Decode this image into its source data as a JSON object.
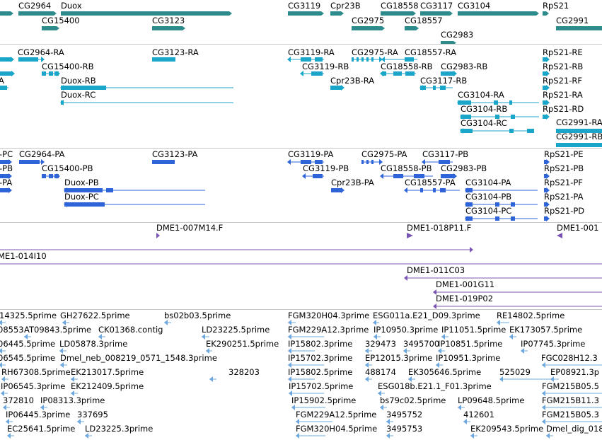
{
  "colors": {
    "gene": "#2e8b8b",
    "transcript": "#1aa6c8",
    "protein": "#2f63d8",
    "clone": "#7b55b3",
    "est": "#6fa8dc",
    "line": "#3a7bd5"
  },
  "tracks": {
    "genes": {
      "labels": [
        "CG2964",
        "Duox",
        "CG15400",
        "CG3123",
        "CG3119",
        "Cpr23B",
        "CG18558",
        "CG3117",
        "CG3104",
        "RpS21",
        "CG2975",
        "CG18557",
        "CG2991",
        "CG2983"
      ]
    },
    "transcripts": {
      "labels": [
        "CG2964-RA",
        "CG3123-RA",
        "CG3119-RA",
        "CG2975-RA",
        "CG18557-RA",
        "RpS21-RE",
        "CG15400-RB",
        "CG3119-RB",
        "CG18558-RB",
        "CG2983-RB",
        "RpS21-RB",
        "Duox-RB",
        "Cpr23B-RA",
        "CG3117-RB",
        "RpS21-RF",
        "Duox-RC",
        "CG3104-RA",
        "RpS21-RA",
        "CG3104-RB",
        "RpS21-RD",
        "CG2991-RA",
        "CG3104-RC",
        "CG2991-RB",
        "A"
      ]
    },
    "proteins": {
      "labels": [
        "-PC",
        "CG2964-PA",
        "CG3123-PA",
        "CG3119-PA",
        "CG2975-PA",
        "CG3117-PB",
        "RpS21-PE",
        "-PB",
        "CG15400-PB",
        "CG3119-PB",
        "CG18558-PB",
        "CG2983-PB",
        "RpS21-PB",
        "-PA",
        "Duox-PB",
        "Cpr23B-PA",
        "CG18557-PA",
        "CG3104-PA",
        "RpS21-PF",
        "CG3104-PB",
        "RpS21-PA",
        "Duox-PC",
        "CG3104-PC",
        "RpS21-PD"
      ]
    },
    "clones": {
      "labels": [
        "DME1-007M14.F",
        "DME1-018P11.F",
        "DME1-001",
        "ME1-014I10",
        "DME1-011C03",
        "DME1-001G11",
        "DME1-019P02"
      ]
    },
    "ests": {
      "labels": [
        "14325.5prime",
        "GH27622.5prime",
        "bs02b03.5prime",
        "FGM320H04.3prime",
        "ESG011a.E21_D09.3prime",
        "RE14802.5prime",
        "08553",
        "AT09843.5prime",
        "CK01368.contig",
        "LD23225.5prime",
        "FGM229A12.3prime",
        "IP10950.3prime",
        "IP11051.5prime",
        "EK173057.5prime",
        "06445.5prime",
        "LD05878.3prime",
        "EK290251.5prime",
        "IP15802.3prime",
        "329473",
        "3495700",
        "IP10851.5prime",
        "IP07745.3prime",
        "06545.5prime",
        "Dmel_neb_008219_0571_1548.3prime",
        "IP15702.3prime",
        "EP12015.3prime",
        "IP10951.3prime",
        "FGC028H12.3",
        "RH67308.5prime",
        "EK213017.5prime",
        "328203",
        "IP15802.5prime",
        "488174",
        "EK305646.5prime",
        "525029",
        "EP08921.3p",
        "IP06545.3prime",
        "EK212409.5prime",
        "IP15702.5prime",
        "ESG018b.E21.1_F01.3prime",
        "FGM215B05.5",
        "372810",
        "IP08313.3prime",
        "IP15902.5prime",
        "bs79c02.5prime",
        "LP09648.5prime",
        "FGM215B11.3",
        "IP06445.3prime",
        "337695",
        "FGM229A12.5prime",
        "3495752",
        "412601",
        "FGM215B05.3",
        "EC25641.5prime",
        "LD23225.3prime",
        "FGM320H04.5prime",
        "3495753",
        "EK209543.5prime",
        "Dmel_dig_018"
      ]
    }
  }
}
